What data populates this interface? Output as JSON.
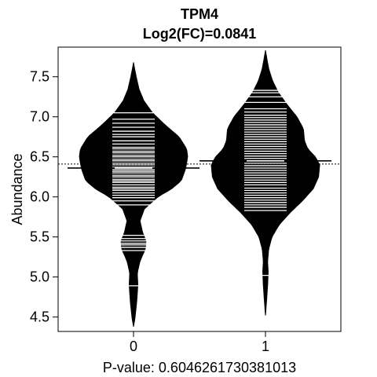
{
  "chart_data": {
    "type": "beanplot",
    "title": "TPM4",
    "subtitle": "Log2(FC)=0.0841",
    "xlabel": "P-value: 0.6046261730381013",
    "ylabel": "Abundance",
    "categories": [
      "0",
      "1"
    ],
    "y_ticks": [
      "4.5",
      "5.0",
      "5.5",
      "6.0",
      "6.5",
      "7.0",
      "7.5"
    ],
    "ylim": [
      4.32,
      7.87
    ],
    "overall_mean": 6.41,
    "grid": false,
    "series": [
      {
        "group": "0",
        "mean": 6.36,
        "density_profile": [
          [
            4.38,
            0.0
          ],
          [
            4.5,
            0.03
          ],
          [
            4.7,
            0.06
          ],
          [
            4.9,
            0.08
          ],
          [
            5.05,
            0.07
          ],
          [
            5.2,
            0.12
          ],
          [
            5.35,
            0.22
          ],
          [
            5.45,
            0.23
          ],
          [
            5.55,
            0.17
          ],
          [
            5.7,
            0.12
          ],
          [
            5.85,
            0.2
          ],
          [
            6.0,
            0.45
          ],
          [
            6.1,
            0.7
          ],
          [
            6.2,
            0.88
          ],
          [
            6.35,
            0.96
          ],
          [
            6.5,
            1.0
          ],
          [
            6.6,
            0.98
          ],
          [
            6.75,
            0.84
          ],
          [
            6.9,
            0.58
          ],
          [
            7.05,
            0.35
          ],
          [
            7.2,
            0.19
          ],
          [
            7.35,
            0.1
          ],
          [
            7.5,
            0.05
          ],
          [
            7.6,
            0.02
          ],
          [
            7.68,
            0.0
          ]
        ],
        "observations": [
          4.89,
          5.33,
          5.37,
          5.4,
          5.42,
          5.45,
          5.48,
          5.52,
          5.9,
          5.95,
          5.99,
          6.02,
          6.05,
          6.08,
          6.1,
          6.12,
          6.15,
          6.18,
          6.2,
          6.22,
          6.25,
          6.27,
          6.3,
          6.32,
          6.34,
          6.37,
          6.4,
          6.42,
          6.45,
          6.47,
          6.5,
          6.52,
          6.55,
          6.57,
          6.6,
          6.62,
          6.66,
          6.7,
          6.75,
          6.78,
          6.82,
          6.87,
          6.92,
          6.97,
          7.05
        ]
      },
      {
        "group": "1",
        "mean": 6.45,
        "density_profile": [
          [
            4.52,
            0.0
          ],
          [
            4.7,
            0.02
          ],
          [
            4.9,
            0.04
          ],
          [
            5.05,
            0.05
          ],
          [
            5.2,
            0.04
          ],
          [
            5.35,
            0.06
          ],
          [
            5.5,
            0.12
          ],
          [
            5.65,
            0.25
          ],
          [
            5.8,
            0.45
          ],
          [
            5.95,
            0.68
          ],
          [
            6.1,
            0.88
          ],
          [
            6.25,
            0.98
          ],
          [
            6.4,
            1.0
          ],
          [
            6.5,
            0.92
          ],
          [
            6.6,
            0.78
          ],
          [
            6.7,
            0.72
          ],
          [
            6.85,
            0.7
          ],
          [
            7.0,
            0.58
          ],
          [
            7.15,
            0.4
          ],
          [
            7.3,
            0.24
          ],
          [
            7.45,
            0.13
          ],
          [
            7.6,
            0.06
          ],
          [
            7.75,
            0.02
          ],
          [
            7.83,
            0.0
          ]
        ],
        "observations": [
          5.02,
          5.83,
          5.87,
          5.9,
          5.93,
          5.96,
          5.99,
          6.02,
          6.05,
          6.08,
          6.11,
          6.15,
          6.18,
          6.21,
          6.24,
          6.27,
          6.3,
          6.33,
          6.36,
          6.39,
          6.42,
          6.45,
          6.48,
          6.51,
          6.54,
          6.57,
          6.6,
          6.63,
          6.66,
          6.69,
          6.72,
          6.75,
          6.78,
          6.81,
          6.84,
          6.87,
          6.9,
          6.93,
          6.96,
          6.99,
          7.02,
          7.06,
          7.1,
          7.18,
          7.25,
          7.3,
          7.33
        ]
      }
    ]
  }
}
